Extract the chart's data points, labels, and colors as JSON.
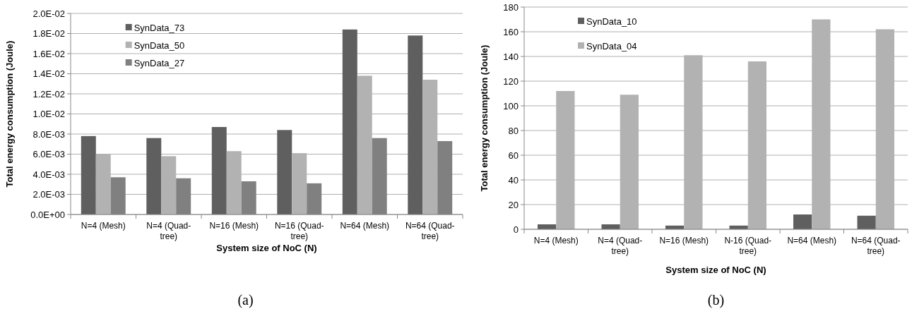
{
  "chart_data": [
    {
      "type": "bar",
      "xlabel": "System size of NoC (N)",
      "ylabel": "Total energy consumption (Joule)",
      "categories": [
        "N=4 (Mesh)",
        "N=4 (Quad-tree)",
        "N=16 (Mesh)",
        "N=16 (Quad-tree)",
        "N=64 (Mesh)",
        "N=64 (Quad-tree)"
      ],
      "series": [
        {
          "name": "SynData_73",
          "color": "#5f5f5f",
          "values": [
            0.0078,
            0.0076,
            0.0087,
            0.0084,
            0.0184,
            0.0178
          ]
        },
        {
          "name": "SynData_50",
          "color": "#b2b2b2",
          "values": [
            0.006,
            0.0058,
            0.0063,
            0.0061,
            0.0138,
            0.0134
          ]
        },
        {
          "name": "SynData_27",
          "color": "#808080",
          "values": [
            0.0037,
            0.0036,
            0.0033,
            0.0031,
            0.0076,
            0.0073
          ]
        }
      ],
      "ylim": [
        0,
        0.02
      ],
      "yticks": [
        {
          "value": 0,
          "label": "0.0E+00"
        },
        {
          "value": 0.002,
          "label": "2.0E-03"
        },
        {
          "value": 0.004,
          "label": "4.0E-03"
        },
        {
          "value": 0.006,
          "label": "6.0E-03"
        },
        {
          "value": 0.008,
          "label": "8.0E-03"
        },
        {
          "value": 0.01,
          "label": "1.0E-02"
        },
        {
          "value": 0.012,
          "label": "1.2E-02"
        },
        {
          "value": 0.014,
          "label": "1.4E-02"
        },
        {
          "value": 0.016,
          "label": "1.6E-02"
        },
        {
          "value": 0.018,
          "label": "1.8E-02"
        },
        {
          "value": 0.02,
          "label": "2.0E-02"
        }
      ],
      "grid": "y",
      "legend": "top left",
      "annotations": [
        "(a)"
      ]
    },
    {
      "type": "bar",
      "xlabel": "System size of NoC (N)",
      "ylabel": "Total energy consumption (Joule)",
      "categories": [
        "N=4 (Mesh)",
        "N=4 (Quad-tree)",
        "N=16 (Mesh)",
        "N-16 (Quad-tree)",
        "N=64 (Mesh)",
        "N=64 (Quad-tree)"
      ],
      "series": [
        {
          "name": "SynData_10",
          "color": "#5f5f5f",
          "values": [
            4,
            4,
            3,
            3,
            12,
            11
          ]
        },
        {
          "name": "SynData_04",
          "color": "#b2b2b2",
          "values": [
            112,
            109,
            141,
            136,
            170,
            162
          ]
        }
      ],
      "ylim": [
        0,
        180
      ],
      "yticks": [
        0,
        20,
        40,
        60,
        80,
        100,
        120,
        140,
        160,
        180
      ],
      "grid": "y",
      "legend": "top left",
      "annotations": [
        "(b)"
      ]
    }
  ]
}
